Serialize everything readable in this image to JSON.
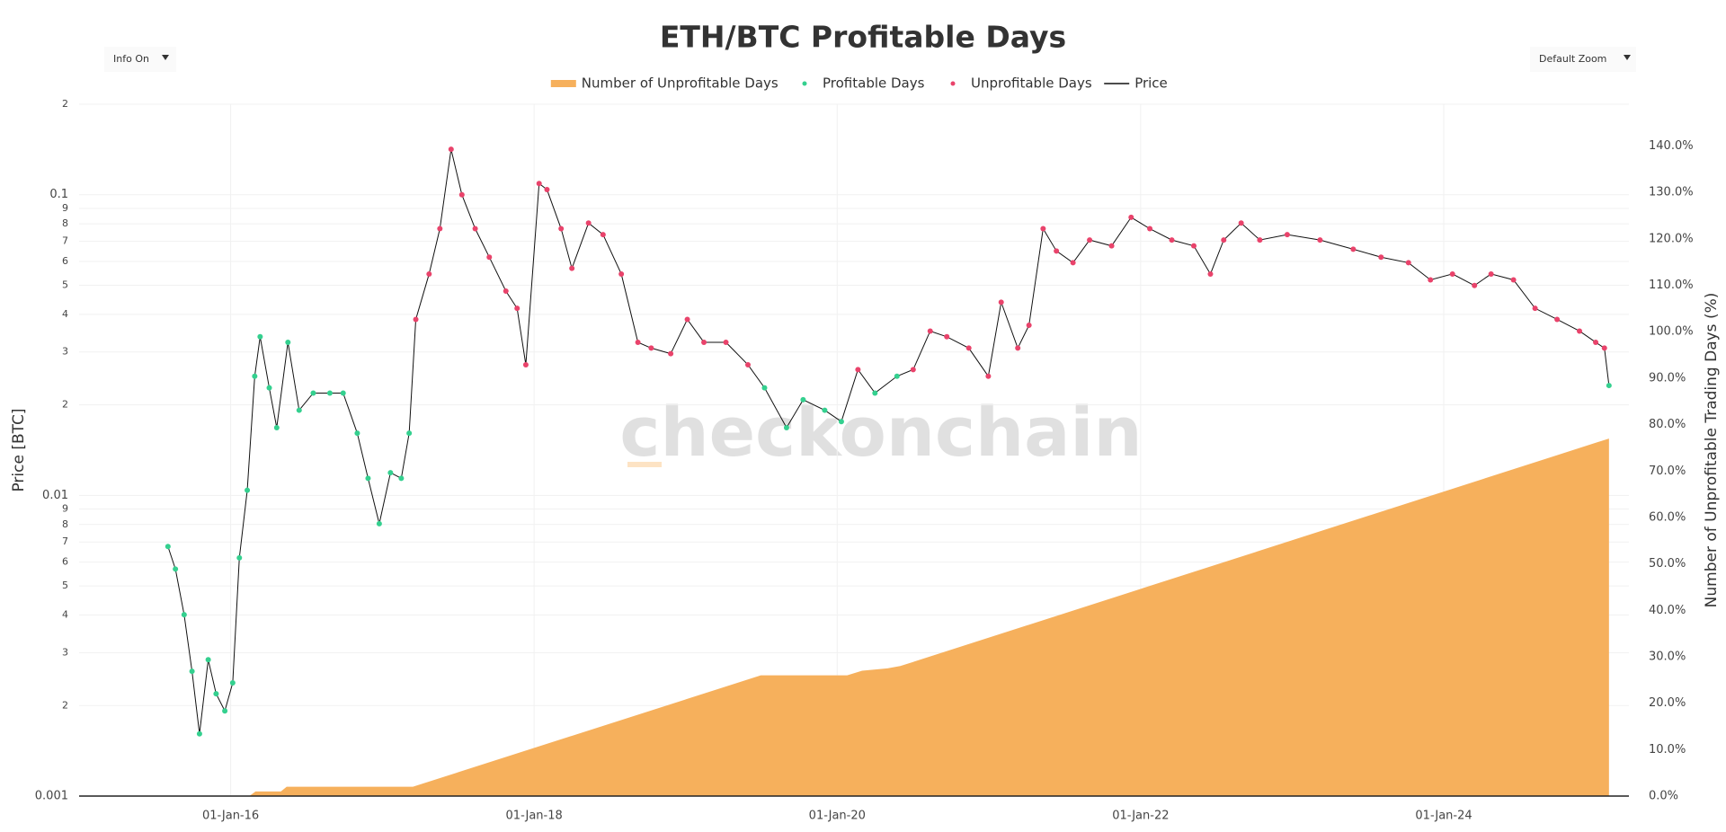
{
  "controls": {
    "info": "Info On",
    "zoom": "Default Zoom"
  },
  "chart_data": {
    "type": "line",
    "title": "ETH/BTC Profitable Days",
    "watermark": "checkonchain",
    "y_label": "Price [BTC]",
    "y2_label": "Number of Unprofitable Trading Days (%)",
    "log_y": true,
    "grid": true,
    "legend": "top",
    "xlim": [
      "2015-01-01",
      "2025-03-22"
    ],
    "xticks": [
      {
        "value": "2016-01-01",
        "label": "01-Jan-16"
      },
      {
        "value": "2018-01-01",
        "label": "01-Jan-18"
      },
      {
        "value": "2020-01-01",
        "label": "01-Jan-20"
      },
      {
        "value": "2022-01-01",
        "label": "01-Jan-22"
      },
      {
        "value": "2024-01-01",
        "label": "01-Jan-24"
      }
    ],
    "ylim": [
      0.001,
      0.2
    ],
    "yticks": [
      0.001,
      {
        "value": 0.002,
        "label": "2"
      },
      {
        "value": 0.003,
        "label": "3"
      },
      {
        "value": 0.004,
        "label": "4"
      },
      {
        "value": 0.005,
        "label": "5"
      },
      {
        "value": 0.006,
        "label": "6"
      },
      {
        "value": 0.007,
        "label": "7"
      },
      {
        "value": 0.008,
        "label": "8"
      },
      {
        "value": 0.009,
        "label": "9"
      },
      0.01,
      {
        "value": 0.02,
        "label": "2"
      },
      {
        "value": 0.03,
        "label": "3"
      },
      {
        "value": 0.04,
        "label": "4"
      },
      {
        "value": 0.05,
        "label": "5"
      },
      {
        "value": 0.06,
        "label": "6"
      },
      {
        "value": 0.07,
        "label": "7"
      },
      {
        "value": 0.08,
        "label": "8"
      },
      {
        "value": 0.09,
        "label": "9"
      },
      0.1,
      {
        "value": 0.2,
        "label": "2"
      }
    ],
    "y2lim": [
      0,
      149
    ],
    "y2ticks": [
      {
        "value": 0,
        "label": "0.0%"
      },
      {
        "value": 10,
        "label": "10.0%"
      },
      {
        "value": 20,
        "label": "20.0%"
      },
      {
        "value": 30,
        "label": "30.0%"
      },
      {
        "value": 40,
        "label": "40.0%"
      },
      {
        "value": 50,
        "label": "50.0%"
      },
      {
        "value": 60,
        "label": "60.0%"
      },
      {
        "value": 70,
        "label": "70.0%"
      },
      {
        "value": 80,
        "label": "80.0%"
      },
      {
        "value": 90,
        "label": "90.0%"
      },
      {
        "value": 100,
        "label": "100.0%"
      },
      {
        "value": 110,
        "label": "110.0%"
      },
      {
        "value": 120,
        "label": "120.0%"
      },
      {
        "value": 130,
        "label": "130.0%"
      },
      {
        "value": 140,
        "label": "140.0%"
      }
    ],
    "x": [
      "2015-08-03",
      "2015-08-21",
      "2015-09-11",
      "2015-09-30",
      "2015-10-18",
      "2015-11-08",
      "2015-11-27",
      "2015-12-18",
      "2016-01-06",
      "2016-01-22",
      "2016-02-10",
      "2016-02-28",
      "2016-03-12",
      "2016-04-03",
      "2016-04-21",
      "2016-05-18",
      "2016-06-14",
      "2016-07-18",
      "2016-08-27",
      "2016-09-28",
      "2016-11-01",
      "2016-11-27",
      "2016-12-24",
      "2017-01-20",
      "2017-02-15",
      "2017-03-06",
      "2017-03-22",
      "2017-04-23",
      "2017-05-19",
      "2017-06-15",
      "2017-07-11",
      "2017-08-12",
      "2017-09-15",
      "2017-10-25",
      "2017-11-21",
      "2017-12-12",
      "2018-01-13",
      "2018-02-01",
      "2018-03-07",
      "2018-04-02",
      "2018-05-12",
      "2018-06-16",
      "2018-07-30",
      "2018-09-08",
      "2018-10-10",
      "2018-11-26",
      "2019-01-05",
      "2019-02-14",
      "2019-04-08",
      "2019-05-31",
      "2019-07-10",
      "2019-09-01",
      "2019-10-11",
      "2019-12-02",
      "2020-01-11",
      "2020-02-20",
      "2020-04-01",
      "2020-05-24",
      "2020-07-02",
      "2020-08-12",
      "2020-09-21",
      "2020-11-13",
      "2020-12-30",
      "2021-01-30",
      "2021-03-11",
      "2021-04-07",
      "2021-05-11",
      "2021-06-12",
      "2021-07-22",
      "2021-08-31",
      "2021-10-23",
      "2021-12-09",
      "2022-01-23",
      "2022-03-17",
      "2022-05-09",
      "2022-06-18",
      "2022-07-20",
      "2022-08-31",
      "2022-10-15",
      "2022-12-20",
      "2023-03-09",
      "2023-05-28",
      "2023-08-03",
      "2023-10-08",
      "2023-11-30",
      "2024-01-22",
      "2024-03-15",
      "2024-04-24",
      "2024-06-17",
      "2024-08-08",
      "2024-09-30",
      "2024-11-23",
      "2025-01-01",
      "2025-01-22",
      "2025-02-02"
    ],
    "series": [
      {
        "name": "Number of Unprofitable Days",
        "type": "area",
        "axis": "y2",
        "color": "#f6b05c",
        "x": [
          "2015-08-03",
          "2016-02-15",
          "2016-03-01",
          "2016-05-01",
          "2016-05-15",
          "2017-03-15",
          "2019-07-01",
          "2020-01-25",
          "2020-03-01",
          "2020-05-01",
          "2020-06-01",
          "2025-02-02"
        ],
        "values": [
          0,
          0,
          1,
          1,
          2,
          2,
          26,
          26,
          27,
          27.5,
          28,
          77
        ]
      },
      {
        "name": "Profitable Days",
        "type": "scatter",
        "color": "#34d08f",
        "values": [
          0.00676,
          0.00569,
          0.00401,
          0.0026,
          0.00161,
          0.00284,
          0.00219,
          0.00192,
          0.00238,
          0.0062,
          0.0104,
          0.0249,
          0.0337,
          0.0228,
          0.0168,
          0.0323,
          0.0192,
          0.0219,
          0.0219,
          0.0219,
          0.0161,
          0.0114,
          0.00805,
          0.0119,
          0.0114,
          0.0161,
          null,
          null,
          null,
          null,
          null,
          null,
          null,
          null,
          null,
          null,
          null,
          null,
          null,
          null,
          null,
          null,
          null,
          null,
          null,
          null,
          null,
          null,
          null,
          null,
          0.0228,
          0.0168,
          0.0208,
          0.0192,
          0.0176,
          null,
          0.0219,
          0.0249,
          null,
          null,
          null,
          null,
          null,
          null,
          null,
          null,
          null,
          null,
          null,
          null,
          null,
          null,
          null,
          null,
          null,
          null,
          null,
          null,
          null,
          null,
          null,
          null,
          null,
          null,
          null,
          null,
          null,
          null,
          null,
          null,
          null,
          null,
          null,
          null,
          0.0232
        ]
      },
      {
        "name": "Unprofitable Days",
        "type": "scatter",
        "color": "#e9436b",
        "values": [
          null,
          null,
          null,
          null,
          null,
          null,
          null,
          null,
          null,
          null,
          null,
          null,
          null,
          null,
          null,
          null,
          null,
          null,
          null,
          null,
          null,
          null,
          null,
          null,
          null,
          null,
          0.0385,
          0.0545,
          0.0771,
          0.1416,
          0.1,
          0.0771,
          0.062,
          0.0478,
          0.0419,
          0.0272,
          0.109,
          0.104,
          0.0771,
          0.0569,
          0.0805,
          0.0737,
          0.0545,
          0.0323,
          0.0309,
          0.0296,
          0.0385,
          0.0323,
          0.0323,
          0.0272,
          null,
          null,
          null,
          null,
          null,
          0.0262,
          null,
          null,
          0.0262,
          0.0352,
          0.0337,
          0.0309,
          0.0249,
          0.0439,
          0.0309,
          0.0368,
          0.0771,
          0.065,
          0.0594,
          0.0707,
          0.0676,
          0.0841,
          0.0771,
          0.0707,
          0.0676,
          0.0545,
          0.0707,
          0.0805,
          0.0707,
          0.0737,
          0.0707,
          0.0659,
          0.062,
          0.0594,
          0.0521,
          0.0545,
          0.0499,
          0.0545,
          0.0521,
          0.0419,
          0.0385,
          0.0352,
          0.0323,
          0.0309,
          null
        ]
      },
      {
        "name": "Price",
        "type": "line",
        "color": "#111111",
        "values": [
          0.00676,
          0.00569,
          0.00401,
          0.0026,
          0.00161,
          0.00284,
          0.00219,
          0.00192,
          0.00238,
          0.0062,
          0.0104,
          0.0249,
          0.0337,
          0.0228,
          0.0168,
          0.0323,
          0.0192,
          0.0219,
          0.0219,
          0.0219,
          0.0161,
          0.0114,
          0.00805,
          0.0119,
          0.0114,
          0.0161,
          0.0385,
          0.0545,
          0.0771,
          0.1416,
          0.1,
          0.0771,
          0.062,
          0.0478,
          0.0419,
          0.0272,
          0.109,
          0.104,
          0.0771,
          0.0569,
          0.0805,
          0.0737,
          0.0545,
          0.0323,
          0.0309,
          0.0296,
          0.0385,
          0.0323,
          0.0323,
          0.0272,
          0.0228,
          0.0168,
          0.0208,
          0.0192,
          0.0176,
          0.0262,
          0.0219,
          0.0249,
          0.0262,
          0.0352,
          0.0337,
          0.0309,
          0.0249,
          0.0439,
          0.0309,
          0.0368,
          0.0771,
          0.065,
          0.0594,
          0.0707,
          0.0676,
          0.0841,
          0.0771,
          0.0707,
          0.0676,
          0.0545,
          0.0707,
          0.0805,
          0.0707,
          0.0737,
          0.0707,
          0.0659,
          0.062,
          0.0594,
          0.0521,
          0.0545,
          0.0499,
          0.0545,
          0.0521,
          0.0419,
          0.0385,
          0.0352,
          0.0323,
          0.0309,
          0.0232
        ]
      }
    ]
  }
}
